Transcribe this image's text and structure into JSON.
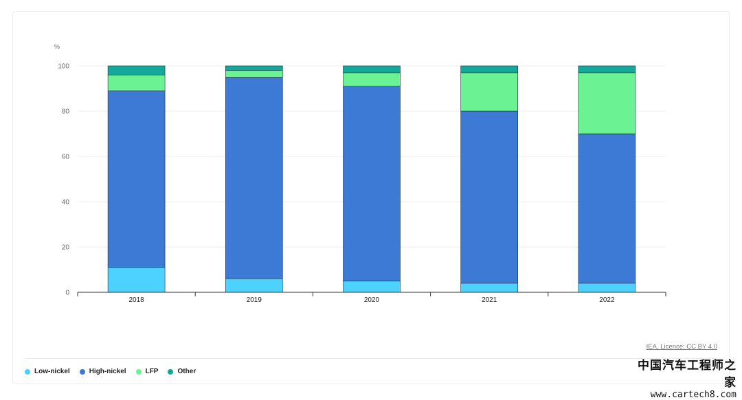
{
  "chart_data": {
    "type": "bar",
    "stacked": true,
    "title": "",
    "xlabel": "",
    "ylabel": "",
    "unit": "%",
    "ylim": [
      0,
      100
    ],
    "yticks": [
      0,
      20,
      40,
      60,
      80,
      100
    ],
    "grid": true,
    "categories": [
      "2018",
      "2019",
      "2020",
      "2021",
      "2022"
    ],
    "series": [
      {
        "name": "Low-nickel",
        "color": "#4dd2ff",
        "values": [
          11,
          6,
          5,
          4,
          4
        ]
      },
      {
        "name": "High-nickel",
        "color": "#3d7ad6",
        "values": [
          78,
          89,
          86,
          76,
          66
        ]
      },
      {
        "name": "LFP",
        "color": "#6af293",
        "values": [
          7,
          3,
          6,
          17,
          27
        ]
      },
      {
        "name": "Other",
        "color": "#13a99a",
        "values": [
          4,
          2,
          3,
          3,
          3
        ]
      }
    ],
    "legend_position": "bottom-left"
  },
  "source": "IEA. Licence: CC BY 4.0",
  "watermark": {
    "cn": "中国汽车工程师之家",
    "url": "www.cartech8.com"
  }
}
